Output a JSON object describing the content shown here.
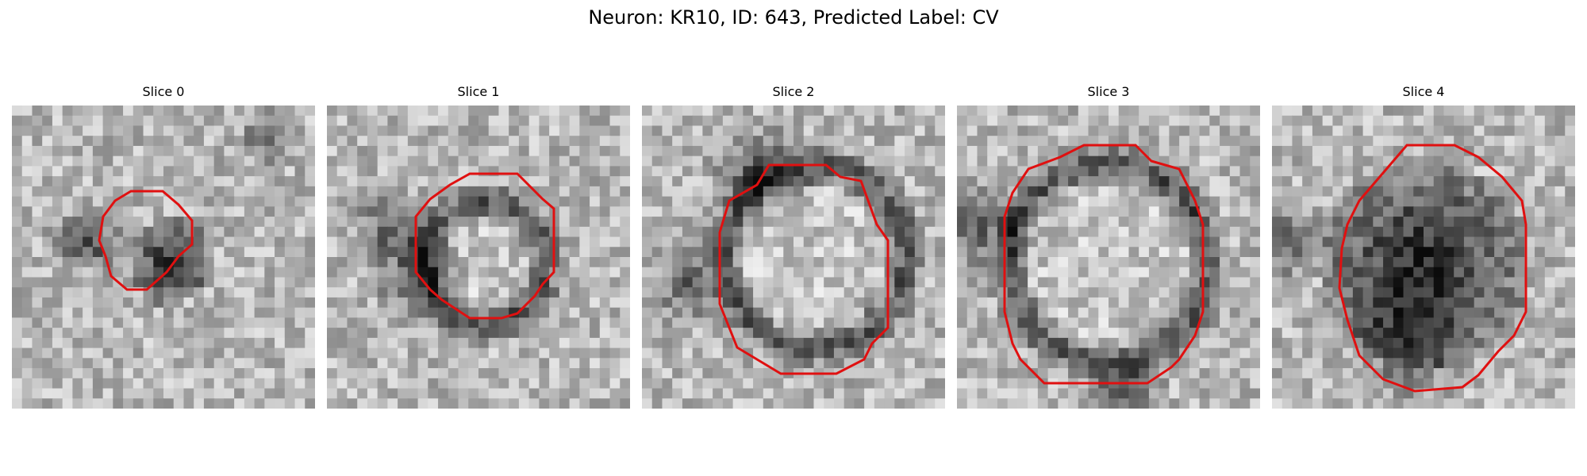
{
  "figure": {
    "title": "Neuron: KR10, ID: 643, Predicted Label: CV"
  },
  "colors": {
    "contour": "#e01010",
    "colormap": "gray"
  },
  "panels": [
    {
      "title": "Slice 0"
    },
    {
      "title": "Slice 1"
    },
    {
      "title": "Slice 2"
    },
    {
      "title": "Slice 3"
    },
    {
      "title": "Slice 4"
    }
  ]
}
